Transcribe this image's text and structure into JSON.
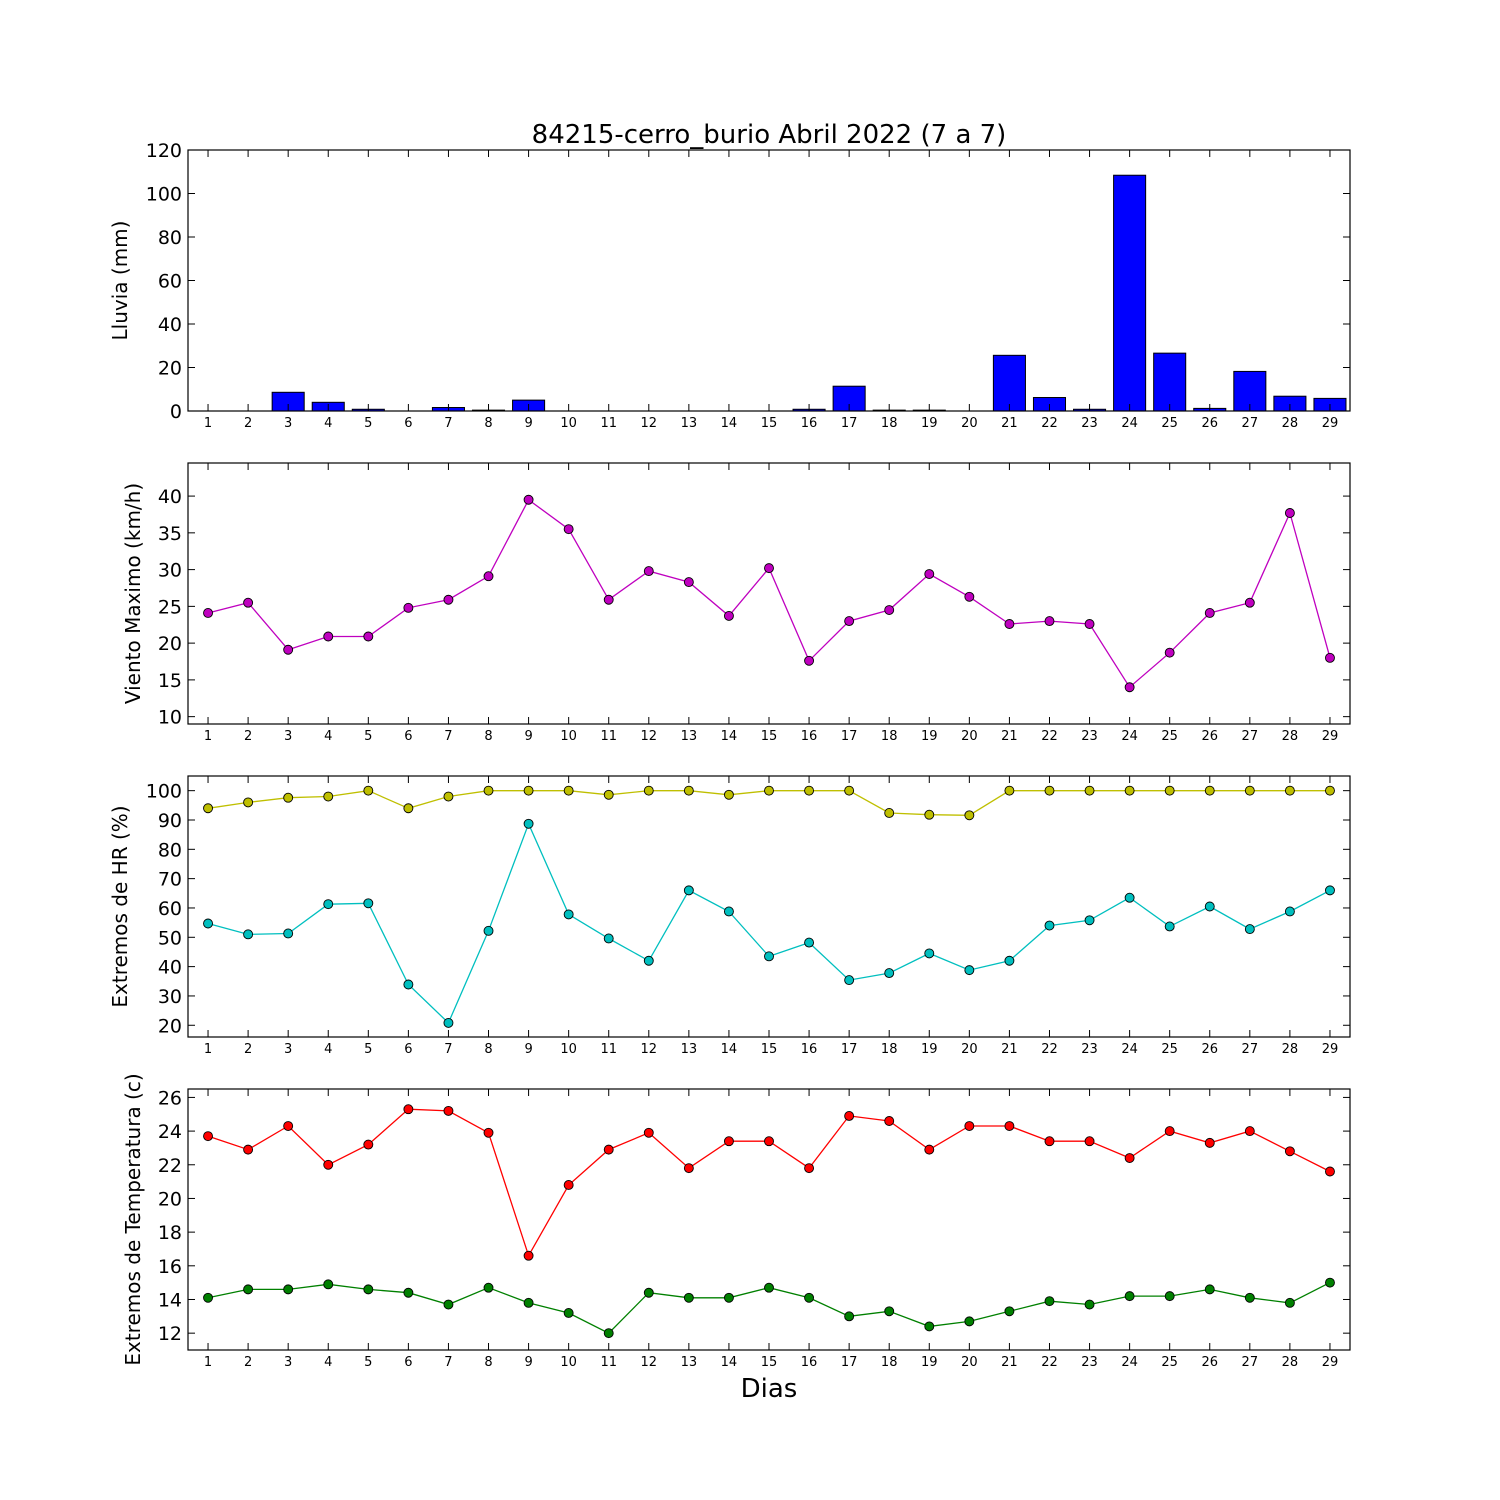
{
  "figure": {
    "title": "84215-cerro_burio Abril 2022  (7 a 7)",
    "xlabel": "Dias"
  },
  "chart_data": [
    {
      "type": "bar",
      "id": "lluvia",
      "ylabel": "Lluvia (mm)",
      "categories": [
        1,
        2,
        3,
        4,
        5,
        6,
        7,
        8,
        9,
        10,
        11,
        12,
        13,
        14,
        15,
        16,
        17,
        18,
        19,
        20,
        21,
        22,
        23,
        24,
        25,
        26,
        27,
        28,
        29
      ],
      "ylim": [
        0,
        120
      ],
      "yticks": [
        0,
        20,
        40,
        60,
        80,
        100,
        120
      ],
      "series": [
        {
          "color": "#0000ff",
          "values": [
            0,
            0,
            8.6,
            4,
            0.8,
            0,
            1.6,
            0.4,
            5,
            0,
            0,
            0,
            0,
            0,
            0,
            0.8,
            11.4,
            0.4,
            0.4,
            0,
            25.6,
            6.2,
            0.8,
            108.4,
            26.6,
            1.2,
            18.2,
            6.8,
            5.8
          ]
        }
      ]
    },
    {
      "type": "line",
      "id": "viento",
      "ylabel": "Viento Maximo (km/h)",
      "x": [
        1,
        2,
        3,
        4,
        5,
        6,
        7,
        8,
        9,
        10,
        11,
        12,
        13,
        14,
        15,
        16,
        17,
        18,
        19,
        20,
        21,
        22,
        23,
        24,
        25,
        26,
        27,
        28,
        29
      ],
      "ylim": [
        9,
        44.5
      ],
      "yticks": [
        10,
        15,
        20,
        25,
        30,
        35,
        40
      ],
      "series": [
        {
          "color": "#bf00bf",
          "values": [
            24.1,
            25.5,
            19.1,
            20.9,
            20.9,
            24.8,
            25.9,
            29.1,
            39.5,
            35.5,
            25.9,
            29.8,
            28.3,
            23.7,
            30.2,
            17.6,
            23,
            24.5,
            29.4,
            26.3,
            22.6,
            23,
            22.6,
            14,
            18.7,
            24.1,
            25.5,
            37.7,
            18
          ]
        }
      ]
    },
    {
      "type": "line",
      "id": "hr",
      "ylabel": "Extremos de HR (%)",
      "x": [
        1,
        2,
        3,
        4,
        5,
        6,
        7,
        8,
        9,
        10,
        11,
        12,
        13,
        14,
        15,
        16,
        17,
        18,
        19,
        20,
        21,
        22,
        23,
        24,
        25,
        26,
        27,
        28,
        29
      ],
      "ylim": [
        16,
        105
      ],
      "yticks": [
        20,
        30,
        40,
        50,
        60,
        70,
        80,
        90,
        100
      ],
      "series": [
        {
          "color": "#bfbf00",
          "values": [
            94,
            96,
            97.6,
            98,
            100,
            94,
            98,
            100,
            100,
            100,
            98.6,
            100,
            100,
            98.6,
            100,
            100,
            100,
            92.4,
            91.8,
            91.6,
            100,
            100,
            100,
            100,
            100,
            100,
            100,
            100,
            100
          ]
        },
        {
          "color": "#00bfbf",
          "values": [
            54.7,
            51,
            51.3,
            61.3,
            61.6,
            33.9,
            20.8,
            52.2,
            88.7,
            57.8,
            49.6,
            42,
            66,
            58.8,
            43.5,
            48.2,
            35.4,
            37.8,
            44.5,
            38.8,
            42,
            54,
            55.8,
            63.5,
            53.7,
            60.5,
            52.8,
            58.8,
            66
          ]
        }
      ]
    },
    {
      "type": "line",
      "id": "temperatura",
      "ylabel": "Extremos de Temperatura (c)",
      "x": [
        1,
        2,
        3,
        4,
        5,
        6,
        7,
        8,
        9,
        10,
        11,
        12,
        13,
        14,
        15,
        16,
        17,
        18,
        19,
        20,
        21,
        22,
        23,
        24,
        25,
        26,
        27,
        28,
        29
      ],
      "ylim": [
        11,
        26.5
      ],
      "yticks": [
        12,
        14,
        16,
        18,
        20,
        22,
        24,
        26
      ],
      "series": [
        {
          "color": "#ff0000",
          "values": [
            23.7,
            22.9,
            24.3,
            22,
            23.2,
            25.3,
            25.2,
            23.9,
            16.6,
            20.8,
            22.9,
            23.9,
            21.8,
            23.4,
            23.4,
            21.8,
            24.9,
            24.6,
            22.9,
            24.3,
            24.3,
            23.4,
            23.4,
            22.4,
            24,
            23.3,
            24,
            22.8,
            21.6
          ]
        },
        {
          "color": "#008000",
          "values": [
            14.1,
            14.6,
            14.6,
            14.9,
            14.6,
            14.4,
            13.7,
            14.7,
            13.8,
            13.2,
            12,
            14.4,
            14.1,
            14.1,
            14.7,
            14.1,
            13,
            13.3,
            12.4,
            12.7,
            13.3,
            13.9,
            13.7,
            14.2,
            14.2,
            14.6,
            14.1,
            13.8,
            15
          ]
        }
      ]
    }
  ]
}
